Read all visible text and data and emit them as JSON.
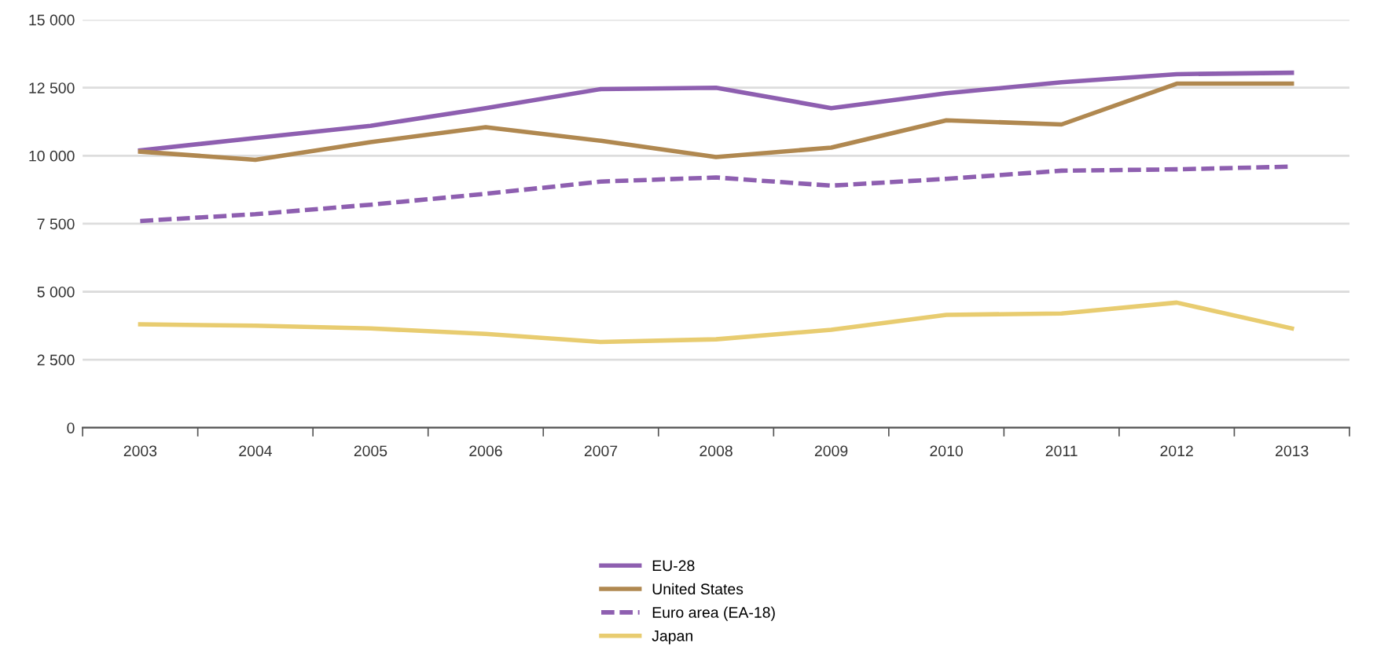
{
  "chart_data": {
    "type": "line",
    "categories": [
      "2003",
      "2004",
      "2005",
      "2006",
      "2007",
      "2008",
      "2009",
      "2010",
      "2011",
      "2012",
      "2013"
    ],
    "series": [
      {
        "name": "EU-28",
        "color": "#8e5fb0",
        "line_style": "solid",
        "values": [
          10200,
          10650,
          11100,
          11750,
          12450,
          12500,
          11750,
          12300,
          12700,
          13000,
          13050
        ]
      },
      {
        "name": "United States",
        "color": "#b08850",
        "line_style": "solid",
        "values": [
          10150,
          9850,
          10500,
          11050,
          10550,
          9950,
          10300,
          11300,
          11150,
          12650,
          12650
        ]
      },
      {
        "name": "Euro area (EA-18)",
        "color": "#8e5fb0",
        "line_style": "dashed",
        "values": [
          7600,
          7850,
          8200,
          8600,
          9050,
          9200,
          8900,
          9150,
          9450,
          9500,
          9600
        ]
      },
      {
        "name": "Japan",
        "color": "#e8cc70",
        "line_style": "solid",
        "values": [
          3800,
          3750,
          3650,
          3450,
          3150,
          3250,
          3600,
          4150,
          4200,
          4600,
          3650
        ]
      }
    ],
    "ylim": [
      0,
      15000
    ],
    "yticks": [
      {
        "value": 0,
        "label": "0"
      },
      {
        "value": 2500,
        "label": "2 500"
      },
      {
        "value": 5000,
        "label": "5 000"
      },
      {
        "value": 7500,
        "label": "7 500"
      },
      {
        "value": 10000,
        "label": "10 000"
      },
      {
        "value": 12500,
        "label": "12 500"
      },
      {
        "value": 15000,
        "label": "15 000"
      }
    ],
    "grid": "y",
    "legend": "bottom",
    "marker": "none"
  }
}
